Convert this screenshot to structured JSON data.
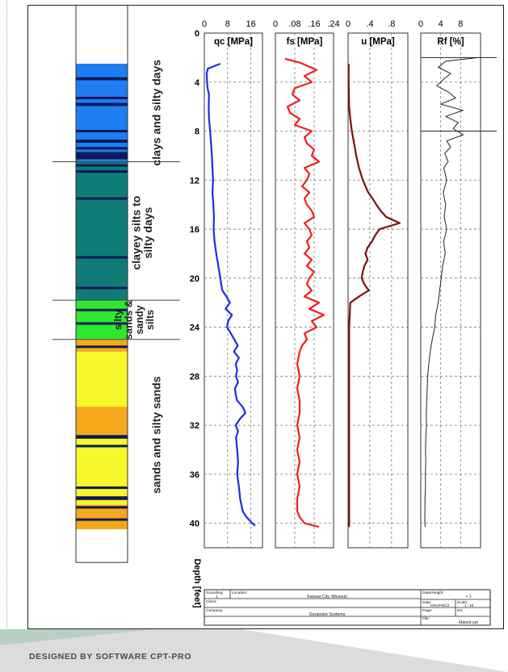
{
  "footer": {
    "credit": "DESIGNED BY SOFTWARE CPT-PRO"
  },
  "legend": {
    "zones": [
      {
        "label_lines": [
          "clays and silty days"
        ]
      },
      {
        "label_lines": [
          "clayey silts to",
          "silty days"
        ]
      },
      {
        "label_lines": [
          "silty",
          "sands &",
          "sandy",
          "silts"
        ]
      },
      {
        "label_lines": [
          "sands and silty sands"
        ]
      }
    ],
    "colors": {
      "clay": "#1e7df0",
      "clayey_silt": "#0f7c78",
      "silty_sand": "#2ee82e",
      "sand": "#f7f72a",
      "sand_orange": "#f6a81c",
      "dark": "#0b1a5c",
      "white": "#ffffff"
    }
  },
  "title_block": {
    "sounding_label": "Sounding:",
    "sounding_value": "1",
    "location_label": "Location:",
    "location_value": "Kansas City, Missouri",
    "client_label": "Client:",
    "company_label": "Company:",
    "company_value": "Geoprobe Systems",
    "date_label": "Date/Height:",
    "date_value": "+ 1",
    "scale_label": "Scale:",
    "scale_value": "1 : 40",
    "page_label": "Page:",
    "no_label": "No:",
    "file_label": "File:",
    "file_value": "Mainst.cpt",
    "graphics_label": "GRAPHICS"
  },
  "chart_data": {
    "type": "line",
    "depth_axis": {
      "label": "Depth [feet]",
      "range": [
        0,
        42
      ],
      "ticks": [
        0,
        4,
        8,
        12,
        16,
        20,
        24,
        28,
        32,
        36,
        40
      ]
    },
    "panels": [
      {
        "name": "qc [MPa]",
        "xlim": [
          0,
          20
        ],
        "ticks": [
          "0",
          "8",
          "16"
        ],
        "tick_values": [
          0,
          8,
          16
        ],
        "color": "#1c2de6",
        "depth": [
          2.5,
          2.9,
          3.3,
          3.7,
          4.5,
          5,
          6,
          7,
          8,
          9,
          10,
          11,
          12,
          13,
          14,
          15,
          16,
          17,
          18,
          19,
          20,
          21,
          21.5,
          22,
          22.5,
          23,
          23.5,
          24,
          24.5,
          25,
          25.5,
          26,
          26.5,
          27,
          27.5,
          28,
          28.5,
          29,
          29.5,
          30,
          30.5,
          31,
          31.5,
          32,
          32.5,
          33,
          34,
          35,
          36,
          37,
          38,
          39,
          39.5,
          40,
          40.2
        ],
        "values": [
          5.5,
          1.2,
          0.8,
          0.9,
          1.1,
          1.6,
          1.5,
          1.6,
          2,
          2.3,
          2.6,
          2.8,
          3,
          2.8,
          3.1,
          3.3,
          3.2,
          3.5,
          4.1,
          4.8,
          5.5,
          6.2,
          7.6,
          8.8,
          7.3,
          9.5,
          8.2,
          7.8,
          9.1,
          10.3,
          11.5,
          10.2,
          11.9,
          10.8,
          11.3,
          10.9,
          11.6,
          10.5,
          10.8,
          11.3,
          13.2,
          14.1,
          12.2,
          10.8,
          11.6,
          10.9,
          11.3,
          11.6,
          11.3,
          11.9,
          12.3,
          13.2,
          14.5,
          16.5,
          17.5
        ]
      },
      {
        "name": "fs [MPa]",
        "xlim": [
          0,
          0.24
        ],
        "ticks": [
          "0",
          ".08",
          ".16",
          ".24"
        ],
        "tick_values": [
          0,
          0.08,
          0.16,
          0.24
        ],
        "color": "#ee2020",
        "depth": [
          2.1,
          2.4,
          3,
          3.5,
          4,
          4.5,
          5,
          5.5,
          6,
          6.5,
          7,
          7.5,
          8,
          8.5,
          9,
          9.5,
          10,
          10.5,
          11,
          11.5,
          12,
          12.5,
          13,
          13.5,
          14,
          14.5,
          15,
          15.5,
          16,
          16.5,
          17,
          17.5,
          18,
          18.5,
          19,
          19.5,
          20,
          20.5,
          21,
          21.5,
          22,
          22.5,
          23,
          23.5,
          24,
          24.5,
          25,
          25.5,
          26,
          27,
          28,
          29,
          30,
          31,
          32,
          33,
          34,
          35,
          36,
          37,
          38,
          39,
          39.5,
          40,
          40.3
        ],
        "values": [
          0.04,
          0.1,
          0.17,
          0.12,
          0.15,
          0.08,
          0.07,
          0.1,
          0.05,
          0.06,
          0.1,
          0.08,
          0.15,
          0.12,
          0.13,
          0.16,
          0.15,
          0.18,
          0.12,
          0.14,
          0.13,
          0.11,
          0.14,
          0.12,
          0.13,
          0.15,
          0.16,
          0.12,
          0.14,
          0.15,
          0.13,
          0.14,
          0.12,
          0.15,
          0.13,
          0.16,
          0.14,
          0.13,
          0.15,
          0.12,
          0.18,
          0.14,
          0.2,
          0.15,
          0.17,
          0.12,
          0.13,
          0.11,
          0.1,
          0.09,
          0.1,
          0.09,
          0.1,
          0.1,
          0.09,
          0.1,
          0.09,
          0.1,
          0.09,
          0.1,
          0.09,
          0.09,
          0.1,
          0.12,
          0.18
        ]
      },
      {
        "name": "u [MPa]",
        "xlim": [
          0,
          1.1
        ],
        "ticks": [
          "0",
          ".4",
          ".8"
        ],
        "tick_values": [
          0,
          0.4,
          0.8
        ],
        "color": "#7a1010",
        "depth": [
          2.5,
          4,
          6,
          7,
          8,
          9,
          10,
          11,
          12,
          13,
          13.5,
          14,
          14.5,
          15,
          15.5,
          16,
          16.5,
          17,
          17.5,
          18,
          18.5,
          19,
          19.5,
          20,
          20.5,
          21,
          21.5,
          22,
          23,
          24,
          26,
          28,
          30,
          32,
          34,
          36,
          38,
          40,
          40.3
        ],
        "values": [
          0.01,
          0.01,
          0.02,
          0.04,
          0.07,
          0.11,
          0.15,
          0.2,
          0.27,
          0.37,
          0.45,
          0.52,
          0.6,
          0.7,
          0.95,
          0.58,
          0.5,
          0.44,
          0.36,
          0.32,
          0.36,
          0.3,
          0.27,
          0.25,
          0.3,
          0.38,
          0.2,
          0.04,
          0.03,
          0.02,
          0.02,
          0.02,
          0.02,
          0.02,
          0.02,
          0.02,
          0.02,
          0.02,
          0.02
        ]
      },
      {
        "name": "Rf [%]",
        "xlim": [
          0,
          12
        ],
        "ticks": [
          "0",
          "4",
          "8"
        ],
        "tick_values": [
          0,
          4,
          8
        ],
        "color": "#222222",
        "depth": [
          2,
          2.3,
          2.8,
          3.3,
          3.8,
          4.3,
          4.8,
          5.3,
          5.8,
          6.3,
          6.8,
          7.3,
          7.8,
          8.3,
          8.8,
          9.3,
          9.8,
          10.5,
          11,
          12,
          13,
          14,
          15,
          16,
          17,
          18,
          19,
          20,
          21,
          22,
          23,
          24,
          25,
          26,
          27,
          28,
          29,
          30,
          31,
          32,
          33,
          34,
          35,
          36,
          37,
          38,
          39,
          40,
          40.3
        ],
        "values": [
          11.5,
          5,
          3.5,
          6,
          4.5,
          3.2,
          5.5,
          7,
          4,
          8.5,
          5,
          7.5,
          6.5,
          8.5,
          5.2,
          6,
          4.8,
          5.5,
          4.6,
          5.2,
          4.5,
          5,
          4.7,
          5.2,
          4.6,
          4.9,
          4.4,
          4.1,
          3.8,
          3.5,
          3,
          2.8,
          2.3,
          1.9,
          1.6,
          1.4,
          1.3,
          1.2,
          1.1,
          1.15,
          1.0,
          0.95,
          1.0,
          0.9,
          0.95,
          0.85,
          0.85,
          0.8,
          0.9
        ]
      }
    ]
  }
}
